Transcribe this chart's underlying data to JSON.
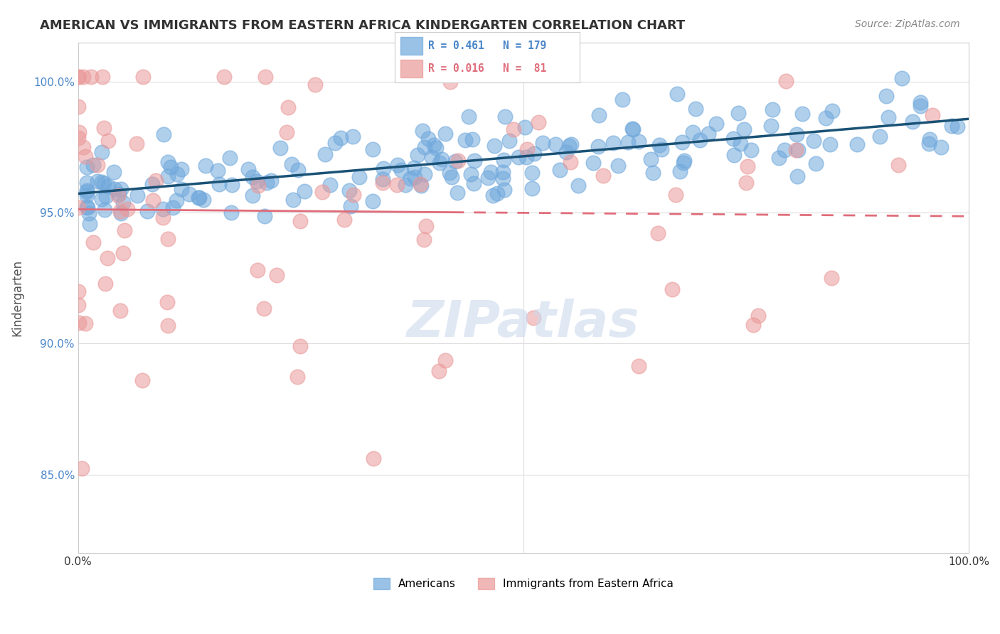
{
  "title": "AMERICAN VS IMMIGRANTS FROM EASTERN AFRICA KINDERGARTEN CORRELATION CHART",
  "source": "Source: ZipAtlas.com",
  "ylabel": "Kindergarten",
  "R_american": 0.461,
  "N_american": 179,
  "R_immigrant": 0.016,
  "N_immigrant": 81,
  "x_min": 0.0,
  "x_max": 1.0,
  "y_min": 0.82,
  "y_max": 1.015,
  "y_ticks": [
    0.85,
    0.9,
    0.95,
    1.0
  ],
  "y_tick_labels": [
    "85.0%",
    "90.0%",
    "95.0%",
    "100.0%"
  ],
  "x_ticks": [
    0.0,
    0.25,
    0.5,
    0.75,
    1.0
  ],
  "x_tick_labels": [
    "0.0%",
    "",
    "",
    "",
    "100.0%"
  ],
  "color_american": "#6fa8dc",
  "color_immigrant": "#ea9999",
  "trend_american": "#1a5276",
  "trend_immigrant": "#e06c7a",
  "background": "#ffffff",
  "grid_color": "#dddddd",
  "american_seed": 42,
  "immigrant_seed": 7
}
